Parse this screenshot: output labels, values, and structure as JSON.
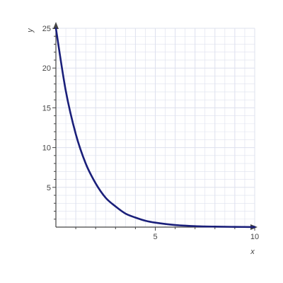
{
  "chart_data": {
    "type": "line",
    "xlabel": "x",
    "ylabel": "y",
    "xlim": [
      0,
      10
    ],
    "ylim": [
      0,
      25
    ],
    "grid": true,
    "x_ticks": [
      5,
      10
    ],
    "y_ticks": [
      5,
      10,
      15,
      20,
      25
    ],
    "x_minor_step": 1,
    "y_minor_step": 1,
    "series": [
      {
        "x": [
          0,
          0.5,
          1,
          1.5,
          2,
          2.5,
          3,
          3.5,
          4,
          4.5,
          5,
          6,
          7,
          8,
          9,
          10
        ],
        "y": [
          25,
          17.1,
          11.7,
          8.0,
          5.5,
          3.7,
          2.6,
          1.7,
          1.2,
          0.8,
          0.56,
          0.26,
          0.12,
          0.06,
          0.03,
          0.01
        ]
      }
    ],
    "colors": {
      "curve": "#1a1f7a",
      "axis": "#444444",
      "grid": "#dde0ee"
    }
  }
}
